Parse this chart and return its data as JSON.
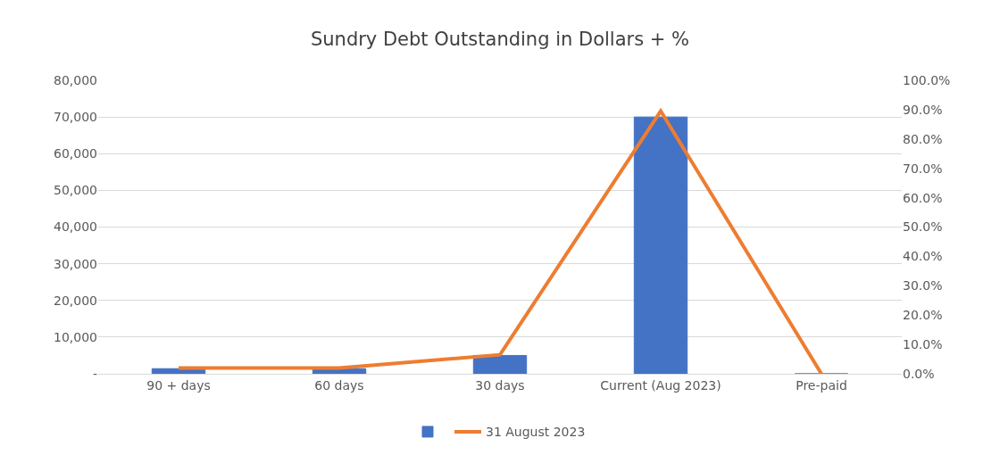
{
  "chart_data": {
    "type": "bar",
    "title": "Sundry Debt Outstanding in Dollars + %",
    "categories": [
      "90 + days",
      "60 days",
      "30 days",
      "Current (Aug 2023)",
      "Pre-paid"
    ],
    "series": [
      {
        "color": "#4472c4",
        "values": [
          1400,
          1400,
          5000,
          70000,
          0
        ]
      },
      {
        "type": "line",
        "axis": "y2",
        "name": "31 August 2023",
        "color": "#ed7d31",
        "values": [
          2.0,
          2.0,
          6.5,
          89.5,
          0
        ]
      }
    ],
    "ylim": [
      0,
      80000
    ],
    "yticks": [
      {
        "value": 0,
        "label": "-"
      },
      {
        "value": 10000,
        "label": "10,000"
      },
      {
        "value": 20000,
        "label": "20,000"
      },
      {
        "value": 30000,
        "label": "30,000"
      },
      {
        "value": 40000,
        "label": "40,000"
      },
      {
        "value": 50000,
        "label": "50,000"
      },
      {
        "value": 60000,
        "label": "60,000"
      },
      {
        "value": 70000,
        "label": "70,000"
      },
      {
        "value": 80000,
        "label": "80,000"
      }
    ],
    "y2lim": [
      0,
      100
    ],
    "y2ticks": [
      {
        "value": 0,
        "label": "0.0%"
      },
      {
        "value": 10,
        "label": "10.0%"
      },
      {
        "value": 20,
        "label": "20.0%"
      },
      {
        "value": 30,
        "label": "30.0%"
      },
      {
        "value": 40,
        "label": "40.0%"
      },
      {
        "value": 50,
        "label": "50.0%"
      },
      {
        "value": 60,
        "label": "60.0%"
      },
      {
        "value": 70,
        "label": "70.0%"
      },
      {
        "value": 80,
        "label": "80.0%"
      },
      {
        "value": 90,
        "label": "90.0%"
      },
      {
        "value": 100,
        "label": "100.0%"
      }
    ],
    "grid": "y",
    "legend": "bottom",
    "marker": "none",
    "line_style": "solid"
  }
}
